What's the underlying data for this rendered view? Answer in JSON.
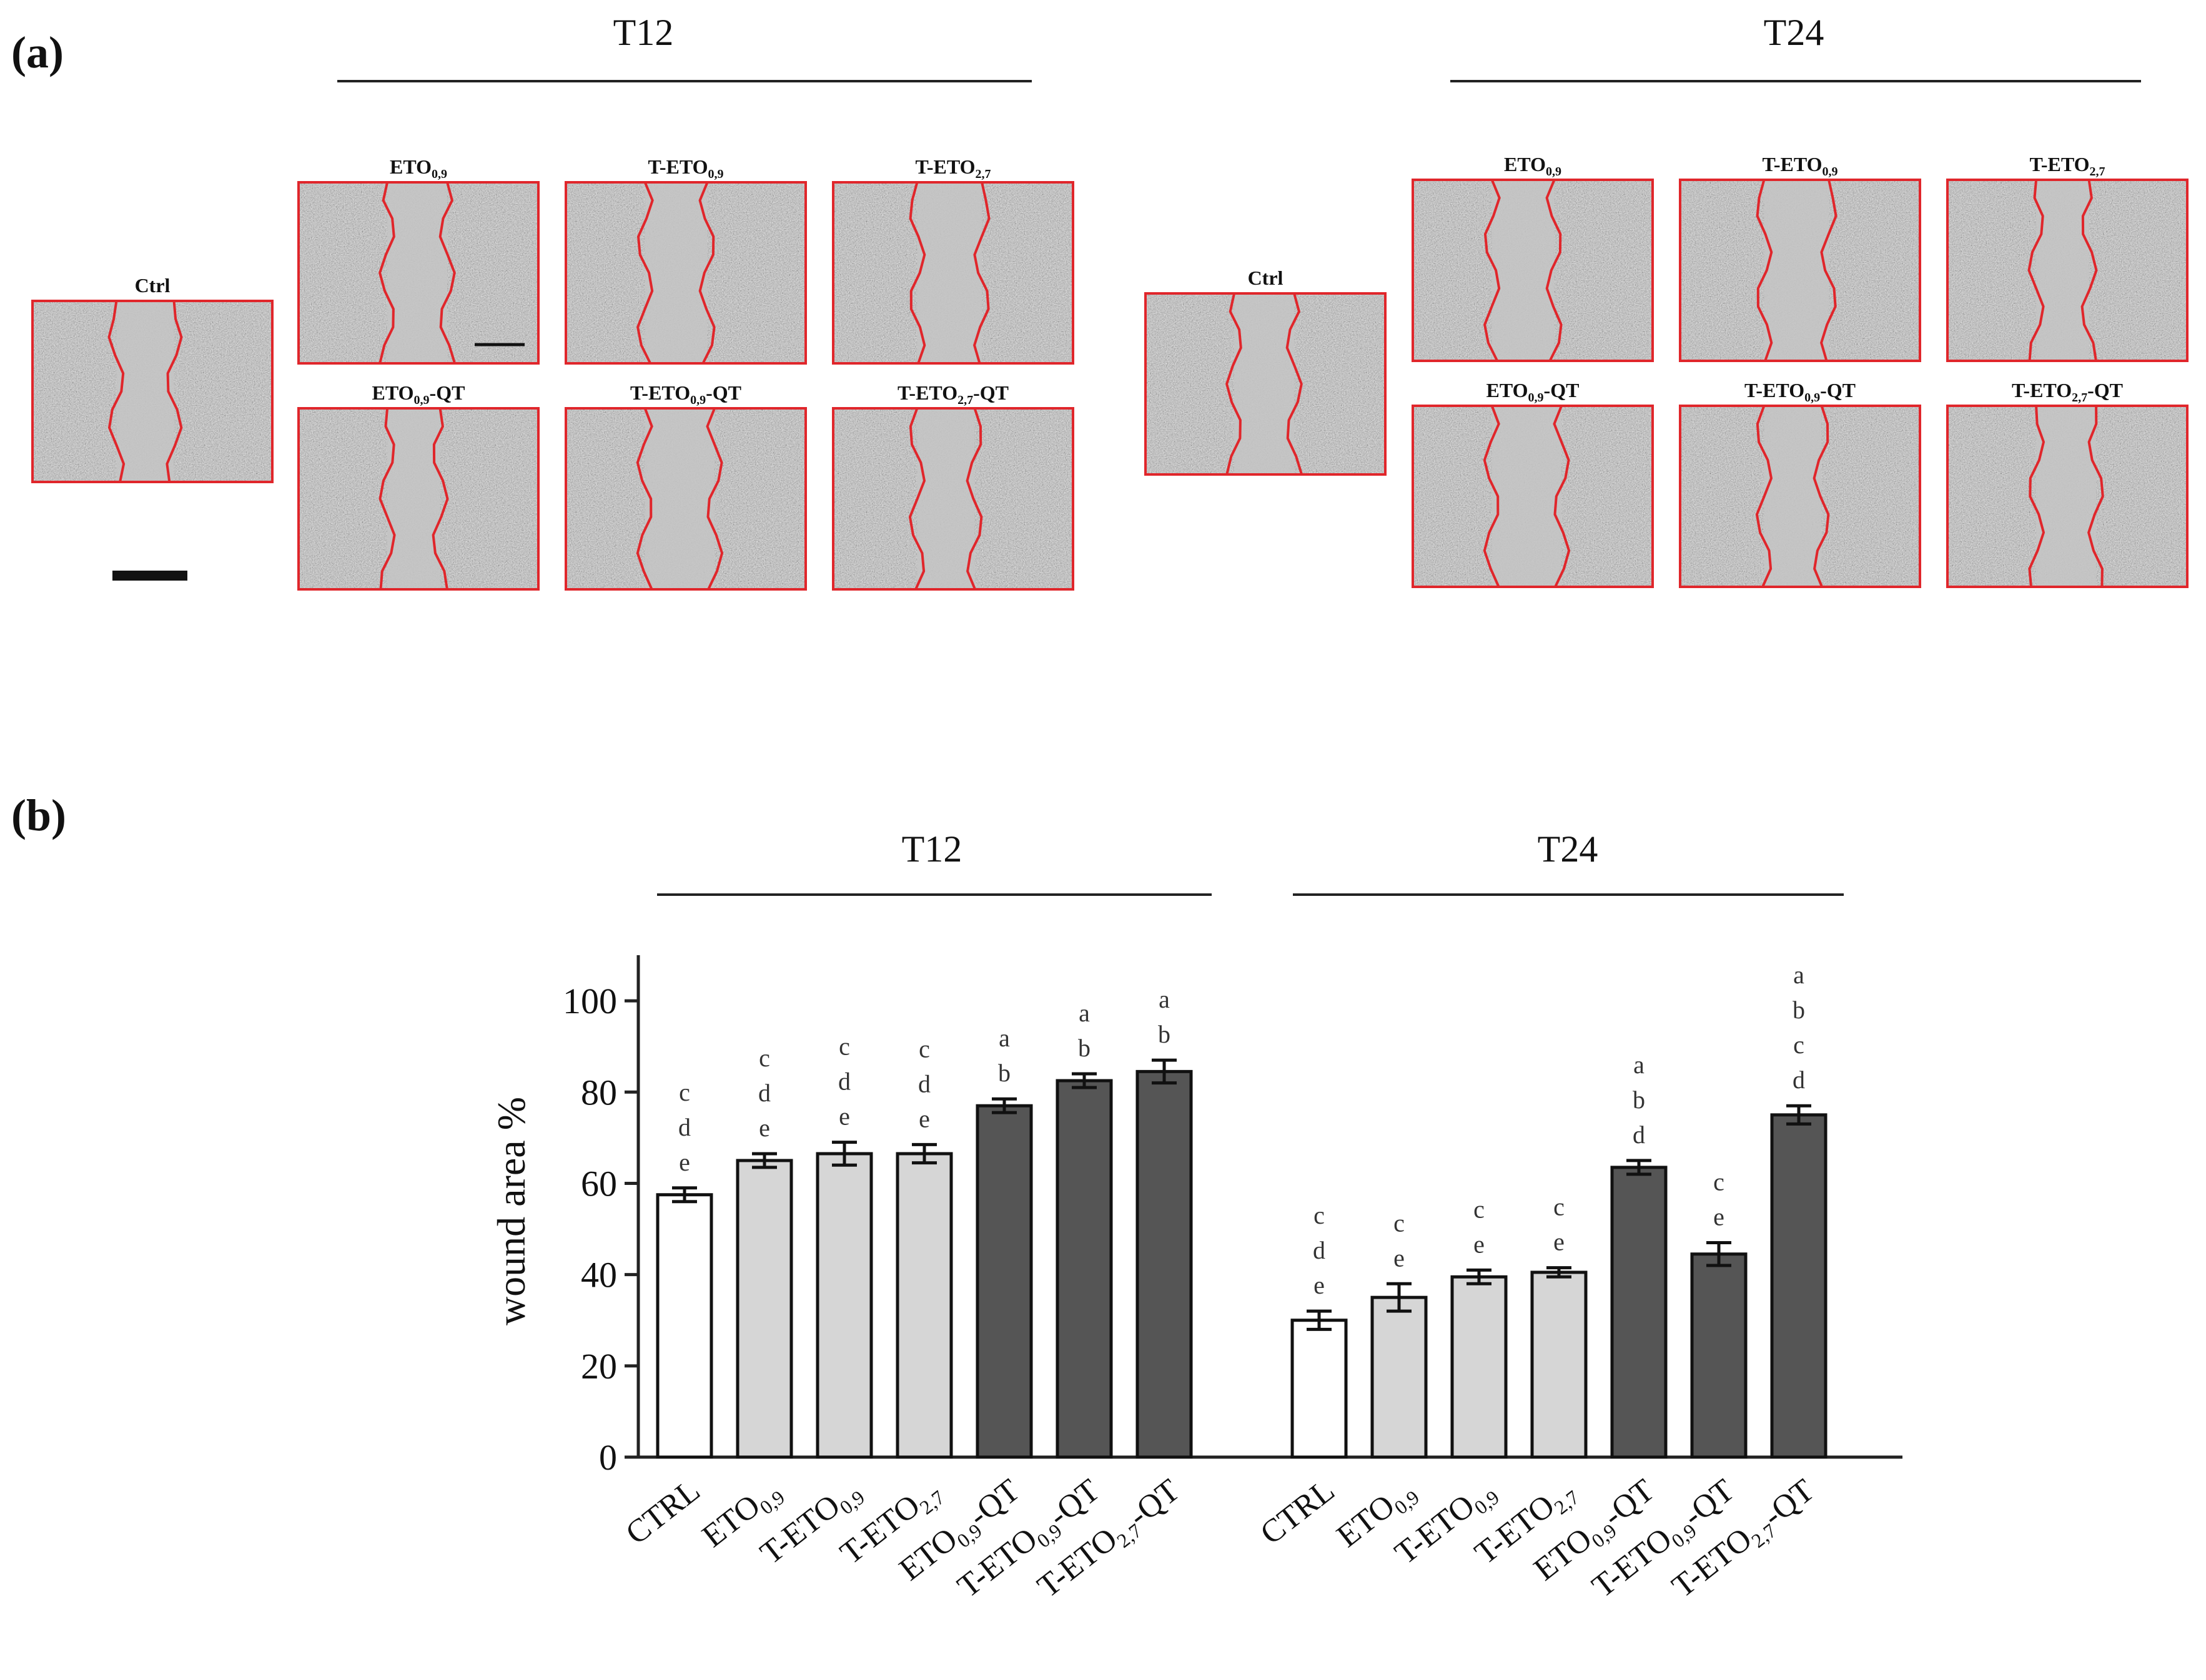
{
  "figure": {
    "panel_a_label": "(a)",
    "panel_b_label": "(b)",
    "colors": {
      "wound_line": "#e0262b",
      "tile_border": "#e0262b",
      "tile_bg": "#b8b8b8",
      "bar_white": "#ffffff",
      "bar_light": "#d6d6d6",
      "bar_dark": "#555555",
      "axis": "#222222"
    }
  },
  "panel_a": {
    "groups": [
      {
        "heading": "T12",
        "ctrl": {
          "label": "Ctrl"
        },
        "top_row": [
          {
            "base": "ETO",
            "sub": "0,9",
            "suffix": ""
          },
          {
            "base": "T-ETO",
            "sub": "0,9",
            "suffix": ""
          },
          {
            "base": "T-ETO",
            "sub": "2,7",
            "suffix": ""
          }
        ],
        "bottom_row": [
          {
            "base": "ETO",
            "sub": "0,9",
            "suffix": "-QT"
          },
          {
            "base": "T-ETO",
            "sub": "0,9",
            "suffix": "-QT"
          },
          {
            "base": "T-ETO",
            "sub": "2,7",
            "suffix": "-QT"
          }
        ]
      },
      {
        "heading": "T24",
        "ctrl": {
          "label": "Ctrl"
        },
        "top_row": [
          {
            "base": "ETO",
            "sub": "0,9",
            "suffix": ""
          },
          {
            "base": "T-ETO",
            "sub": "0,9",
            "suffix": ""
          },
          {
            "base": "T-ETO",
            "sub": "2,7",
            "suffix": ""
          }
        ],
        "bottom_row": [
          {
            "base": "ETO",
            "sub": "0,9",
            "suffix": "-QT"
          },
          {
            "base": "T-ETO",
            "sub": "0,9",
            "suffix": "-QT"
          },
          {
            "base": "T-ETO",
            "sub": "2,7",
            "suffix": "-QT"
          }
        ]
      }
    ]
  },
  "chart_data": {
    "type": "bar",
    "title": "",
    "xlabel": "",
    "ylabel": "wound area %",
    "ylim": [
      0,
      110
    ],
    "yticks": [
      0,
      20,
      40,
      60,
      80,
      100
    ],
    "grid": false,
    "groups": [
      {
        "name": "T12",
        "bars": [
          {
            "label": "CTRL",
            "base": "CTRL",
            "sub": "",
            "suffix": "",
            "value": 57.5,
            "error": 1.5,
            "fill": "white",
            "letters": [
              "c",
              "d",
              "e"
            ]
          },
          {
            "label": "ETO0,9",
            "base": "ETO",
            "sub": "0,9",
            "suffix": "",
            "value": 65,
            "error": 1.5,
            "fill": "light",
            "letters": [
              "c",
              "d",
              "e"
            ]
          },
          {
            "label": "T-ETO0,9",
            "base": "T-ETO",
            "sub": "0,9",
            "suffix": "",
            "value": 66.5,
            "error": 2.5,
            "fill": "light",
            "letters": [
              "c",
              "d",
              "e"
            ]
          },
          {
            "label": "T-ETO2,7",
            "base": "T-ETO",
            "sub": "2,7",
            "suffix": "",
            "value": 66.5,
            "error": 2,
            "fill": "light",
            "letters": [
              "c",
              "d",
              "e"
            ]
          },
          {
            "label": "ETO0,9-QT",
            "base": "ETO",
            "sub": "0,9",
            "suffix": "-QT",
            "value": 77,
            "error": 1.5,
            "fill": "dark",
            "letters": [
              "a",
              "b"
            ]
          },
          {
            "label": "T-ETO0,9-QT",
            "base": "T-ETO",
            "sub": "0,9",
            "suffix": "-QT",
            "value": 82.5,
            "error": 1.5,
            "fill": "dark",
            "letters": [
              "a",
              "b"
            ]
          },
          {
            "label": "T-ETO2,7-QT",
            "base": "T-ETO",
            "sub": "2,7",
            "suffix": "-QT",
            "value": 84.5,
            "error": 2.5,
            "fill": "dark",
            "letters": [
              "a",
              "b"
            ]
          }
        ]
      },
      {
        "name": "T24",
        "bars": [
          {
            "label": "CTRL",
            "base": "CTRL",
            "sub": "",
            "suffix": "",
            "value": 30,
            "error": 2,
            "fill": "white",
            "letters": [
              "c",
              "d",
              "e"
            ]
          },
          {
            "label": "ETO0,9",
            "base": "ETO",
            "sub": "0,9",
            "suffix": "",
            "value": 35,
            "error": 3,
            "fill": "light",
            "letters": [
              "c",
              "e"
            ]
          },
          {
            "label": "T-ETO0,9",
            "base": "T-ETO",
            "sub": "0,9",
            "suffix": "",
            "value": 39.5,
            "error": 1.5,
            "fill": "light",
            "letters": [
              "c",
              "e"
            ]
          },
          {
            "label": "T-ETO2,7",
            "base": "T-ETO",
            "sub": "2,7",
            "suffix": "",
            "value": 40.5,
            "error": 1,
            "fill": "light",
            "letters": [
              "c",
              "e"
            ]
          },
          {
            "label": "ETO0,9-QT",
            "base": "ETO",
            "sub": "0,9",
            "suffix": "-QT",
            "value": 63.5,
            "error": 1.5,
            "fill": "dark",
            "letters": [
              "a",
              "b",
              "d"
            ]
          },
          {
            "label": "T-ETO0,9-QT",
            "base": "T-ETO",
            "sub": "0,9",
            "suffix": "-QT",
            "value": 44.5,
            "error": 2.5,
            "fill": "dark",
            "letters": [
              "c",
              "e"
            ]
          },
          {
            "label": "T-ETO2,7-QT",
            "base": "T-ETO",
            "sub": "2,7",
            "suffix": "-QT",
            "value": 75,
            "error": 2,
            "fill": "dark",
            "letters": [
              "a",
              "b",
              "c",
              "d"
            ]
          }
        ]
      }
    ]
  }
}
